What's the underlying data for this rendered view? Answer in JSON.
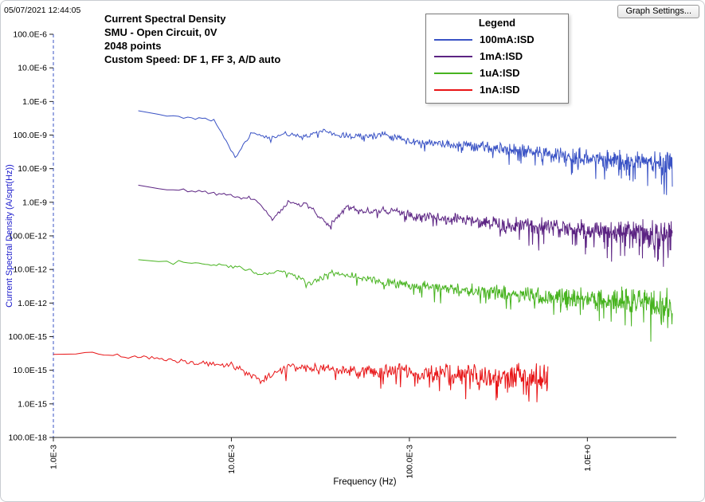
{
  "window": {
    "timestamp": "05/07/2021 12:44:05",
    "graph_settings_label": "Graph Settings..."
  },
  "legend": {
    "title": "Legend"
  },
  "chart_data": {
    "type": "line",
    "x_scale": "log",
    "y_scale": "log",
    "title": "Current Spectral Density",
    "subtitle_lines": [
      "SMU - Open Circuit, 0V",
      "2048 points",
      "Custom Speed: DF 1, FF 3, A/D auto"
    ],
    "xlabel": "Frequency (Hz)",
    "ylabel": "Current Spectral Density (A/sqrt(Hz))",
    "xlim": [
      0.001,
      3.16
    ],
    "ylim": [
      1e-16,
      0.0001
    ],
    "grid": false,
    "legend_position": "top-right",
    "x_ticks": [
      {
        "v": 0.001,
        "label": "1.0E-3"
      },
      {
        "v": 0.01,
        "label": "10.0E-3"
      },
      {
        "v": 0.1,
        "label": "100.0E-3"
      },
      {
        "v": 1.0,
        "label": "1.0E+0"
      }
    ],
    "y_ticks": [
      {
        "v": 0.0001,
        "label": "100.0E-6"
      },
      {
        "v": 1e-05,
        "label": "10.0E-6"
      },
      {
        "v": 1e-06,
        "label": "1.0E-6"
      },
      {
        "v": 1e-07,
        "label": "100.0E-9"
      },
      {
        "v": 1e-08,
        "label": "10.0E-9"
      },
      {
        "v": 1e-09,
        "label": "1.0E-9"
      },
      {
        "v": 1e-10,
        "label": "100.0E-12"
      },
      {
        "v": 1e-11,
        "label": "10.0E-12"
      },
      {
        "v": 1e-12,
        "label": "1.0E-12"
      },
      {
        "v": 1e-13,
        "label": "100.0E-15"
      },
      {
        "v": 1e-14,
        "label": "10.0E-15"
      },
      {
        "v": 1e-15,
        "label": "1.0E-15"
      },
      {
        "v": 1e-16,
        "label": "100.0E-18"
      }
    ],
    "series": [
      {
        "name": "100mA:ISD",
        "color": "#3a53c5",
        "points": 700,
        "noise_decades": [
          0.04,
          0.42
        ],
        "anchors": [
          [
            0.003,
            5e-07
          ],
          [
            0.005,
            3.5e-07
          ],
          [
            0.008,
            2.8e-07
          ],
          [
            0.0105,
            2.2e-08
          ],
          [
            0.013,
            1.2e-07
          ],
          [
            0.016,
            8e-08
          ],
          [
            0.02,
            1.1e-07
          ],
          [
            0.026,
            9e-08
          ],
          [
            0.033,
            1.4e-07
          ],
          [
            0.04,
            1e-07
          ],
          [
            0.055,
            9e-08
          ],
          [
            0.07,
            1.1e-07
          ],
          [
            0.1,
            6e-08
          ],
          [
            0.15,
            5.5e-08
          ],
          [
            0.25,
            4.5e-08
          ],
          [
            0.4,
            3.5e-08
          ],
          [
            0.7,
            2.5e-08
          ],
          [
            1.2,
            2e-08
          ],
          [
            2.0,
            1.6e-08
          ],
          [
            3.0,
            1.3e-08
          ]
        ]
      },
      {
        "name": "1mA:ISD",
        "color": "#5c2483",
        "points": 700,
        "noise_decades": [
          0.06,
          0.5
        ],
        "anchors": [
          [
            0.003,
            3e-09
          ],
          [
            0.006,
            2.2e-09
          ],
          [
            0.01,
            1.6e-09
          ],
          [
            0.014,
            1.2e-09
          ],
          [
            0.017,
            3e-10
          ],
          [
            0.021,
            1e-09
          ],
          [
            0.027,
            8e-10
          ],
          [
            0.035,
            2e-10
          ],
          [
            0.045,
            7e-10
          ],
          [
            0.06,
            5e-10
          ],
          [
            0.08,
            5.5e-10
          ],
          [
            0.12,
            3.5e-10
          ],
          [
            0.2,
            3e-10
          ],
          [
            0.35,
            2.2e-10
          ],
          [
            0.6,
            1.8e-10
          ],
          [
            1.0,
            1.5e-10
          ],
          [
            2.0,
            1.2e-10
          ],
          [
            3.0,
            1e-10
          ]
        ]
      },
      {
        "name": "1uA:ISD",
        "color": "#47b31f",
        "points": 700,
        "noise_decades": [
          0.06,
          0.5
        ],
        "anchors": [
          [
            0.003,
            2e-11
          ],
          [
            0.006,
            1.6e-11
          ],
          [
            0.01,
            1.3e-11
          ],
          [
            0.015,
            7e-12
          ],
          [
            0.02,
            9e-12
          ],
          [
            0.028,
            4e-12
          ],
          [
            0.036,
            8e-12
          ],
          [
            0.05,
            6e-12
          ],
          [
            0.07,
            4.5e-12
          ],
          [
            0.1,
            3.5e-12
          ],
          [
            0.15,
            3e-12
          ],
          [
            0.25,
            2.2e-12
          ],
          [
            0.4,
            1.8e-12
          ],
          [
            0.7,
            1.5e-12
          ],
          [
            1.2,
            1.3e-12
          ],
          [
            2.0,
            1.1e-12
          ],
          [
            3.0,
            1e-12
          ]
        ]
      },
      {
        "name": "1nA:ISD",
        "color": "#e81416",
        "points": 480,
        "noise_decades": [
          0.08,
          0.5
        ],
        "anchors": [
          [
            0.001,
            3.8e-14
          ],
          [
            0.002,
            3e-14
          ],
          [
            0.004,
            2e-14
          ],
          [
            0.007,
            1.6e-14
          ],
          [
            0.01,
            1.4e-14
          ],
          [
            0.015,
            5e-15
          ],
          [
            0.02,
            1.3e-14
          ],
          [
            0.03,
            1.1e-14
          ],
          [
            0.05,
            9e-15
          ],
          [
            0.08,
            1e-14
          ],
          [
            0.12,
            8e-15
          ],
          [
            0.2,
            8e-15
          ],
          [
            0.35,
            7e-15
          ],
          [
            0.6,
            7e-15
          ]
        ]
      }
    ]
  }
}
